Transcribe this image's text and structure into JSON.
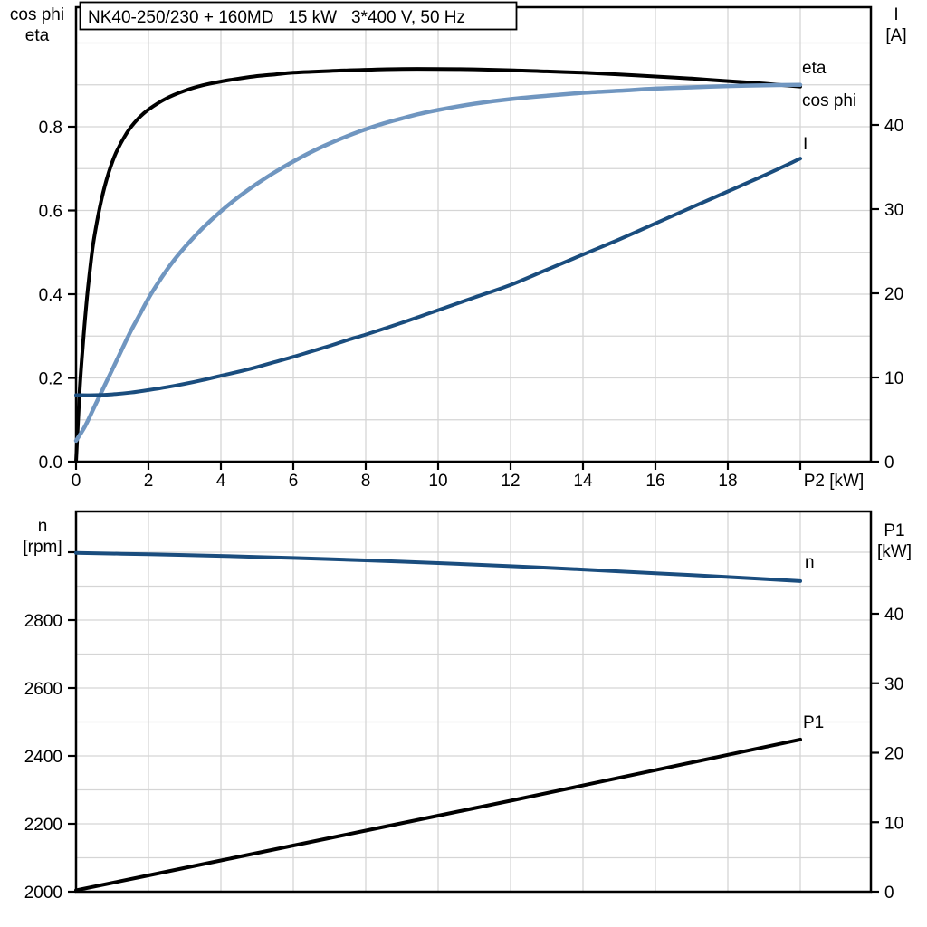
{
  "figure": {
    "title": "NK40-250/230 + 160MD   15 kW   3*400 V, 50 Hz"
  },
  "colors": {
    "eta_curve": "#000000",
    "cos_phi_curve": "#7096c0",
    "cos_phi_label": "#7fa5cd",
    "current_curve": "#1a4d7e",
    "blue_label": "#1f5fa6",
    "grid": "#d5d5d5",
    "axis": "#000000",
    "background": "#ffffff"
  },
  "chart_data": [
    {
      "id": "top",
      "type": "line",
      "title": "NK40-250/230 + 160MD   15 kW   3*400 V, 50 Hz",
      "x_axis": {
        "label": "P2 [kW]",
        "min": 0,
        "max": 21.95,
        "tick_values": [
          0,
          2,
          4,
          6,
          8,
          10,
          12,
          14,
          16,
          18,
          20
        ],
        "tick_labels": [
          "0",
          "2",
          "4",
          "6",
          "8",
          "10",
          "12",
          "14",
          "16",
          "18",
          ""
        ],
        "grid_values": [
          2,
          4,
          6,
          8,
          10,
          12,
          14,
          16,
          18,
          20
        ]
      },
      "y_left": {
        "title_lines": [
          "cos phi",
          "eta"
        ],
        "min": 0,
        "max": 1.085,
        "tick_values": [
          0,
          0.2,
          0.4,
          0.6,
          0.8
        ],
        "tick_labels": [
          "0.0",
          "0.2",
          "0.4",
          "0.6",
          "0.8"
        ],
        "grid_values": [
          0.1,
          0.2,
          0.3,
          0.4,
          0.5,
          0.6,
          0.7,
          0.8,
          0.9,
          1.0
        ]
      },
      "y_right": {
        "title_lines": [
          "I",
          "[A]"
        ],
        "min": 0,
        "max": 54,
        "tick_values": [
          0,
          10,
          20,
          30,
          40
        ],
        "tick_labels": [
          "0",
          "10",
          "20",
          "30",
          "40"
        ]
      },
      "series": [
        {
          "name": "eta",
          "axis": "left",
          "color": "#000000",
          "label_color": "#000000",
          "width": 4,
          "points": [
            [
              0,
              0
            ],
            [
              0.1,
              0.17
            ],
            [
              0.2,
              0.29
            ],
            [
              0.3,
              0.39
            ],
            [
              0.4,
              0.47
            ],
            [
              0.5,
              0.535
            ],
            [
              0.7,
              0.625
            ],
            [
              0.9,
              0.69
            ],
            [
              1.1,
              0.737
            ],
            [
              1.4,
              0.785
            ],
            [
              1.7,
              0.818
            ],
            [
              2,
              0.841
            ],
            [
              2.5,
              0.868
            ],
            [
              3,
              0.886
            ],
            [
              3.5,
              0.899
            ],
            [
              4,
              0.908
            ],
            [
              4.5,
              0.915
            ],
            [
              5,
              0.921
            ],
            [
              5.5,
              0.925
            ],
            [
              6,
              0.929
            ],
            [
              7,
              0.933
            ],
            [
              8,
              0.936
            ],
            [
              9,
              0.938
            ],
            [
              10,
              0.938
            ],
            [
              11,
              0.937
            ],
            [
              12,
              0.935
            ],
            [
              13,
              0.932
            ],
            [
              14,
              0.929
            ],
            [
              15,
              0.925
            ],
            [
              16,
              0.92
            ],
            [
              17,
              0.915
            ],
            [
              18,
              0.909
            ],
            [
              19,
              0.903
            ],
            [
              20,
              0.896
            ]
          ]
        },
        {
          "name": "cos phi",
          "axis": "left",
          "color": "#7096c0",
          "label_color": "#7fa5cd",
          "width": 4.5,
          "points": [
            [
              0,
              0.05
            ],
            [
              0.25,
              0.085
            ],
            [
              0.5,
              0.13
            ],
            [
              0.75,
              0.175
            ],
            [
              1,
              0.22
            ],
            [
              1.25,
              0.265
            ],
            [
              1.5,
              0.31
            ],
            [
              1.75,
              0.35
            ],
            [
              2,
              0.39
            ],
            [
              2.25,
              0.425
            ],
            [
              2.5,
              0.457
            ],
            [
              2.75,
              0.486
            ],
            [
              3,
              0.512
            ],
            [
              3.5,
              0.558
            ],
            [
              4,
              0.598
            ],
            [
              4.5,
              0.633
            ],
            [
              5,
              0.664
            ],
            [
              5.5,
              0.692
            ],
            [
              6,
              0.717
            ],
            [
              6.5,
              0.74
            ],
            [
              7,
              0.76
            ],
            [
              7.5,
              0.778
            ],
            [
              8,
              0.794
            ],
            [
              8.5,
              0.808
            ],
            [
              9,
              0.82
            ],
            [
              9.5,
              0.831
            ],
            [
              10,
              0.84
            ],
            [
              11,
              0.855
            ],
            [
              12,
              0.866
            ],
            [
              13,
              0.874
            ],
            [
              14,
              0.881
            ],
            [
              15,
              0.886
            ],
            [
              16,
              0.891
            ],
            [
              17,
              0.894
            ],
            [
              18,
              0.897
            ],
            [
              19,
              0.899
            ],
            [
              20,
              0.9
            ]
          ]
        },
        {
          "name": "I",
          "axis": "right",
          "color": "#1a4d7e",
          "label_color": "#1f5fa6",
          "width": 4,
          "points": [
            [
              0,
              7.9
            ],
            [
              0.5,
              7.9
            ],
            [
              1,
              8.0
            ],
            [
              1.5,
              8.2
            ],
            [
              2,
              8.5
            ],
            [
              2.5,
              8.85
            ],
            [
              3,
              9.25
            ],
            [
              3.5,
              9.7
            ],
            [
              4,
              10.2
            ],
            [
              4.5,
              10.7
            ],
            [
              5,
              11.25
            ],
            [
              5.5,
              11.85
            ],
            [
              6,
              12.45
            ],
            [
              6.5,
              13.1
            ],
            [
              7,
              13.75
            ],
            [
              7.5,
              14.45
            ],
            [
              8,
              15.1
            ],
            [
              8.5,
              15.8
            ],
            [
              9,
              16.5
            ],
            [
              9.5,
              17.25
            ],
            [
              10,
              18
            ],
            [
              11,
              19.5
            ],
            [
              12,
              21
            ],
            [
              13,
              22.8
            ],
            [
              14,
              24.6
            ],
            [
              15,
              26.4
            ],
            [
              16,
              28.3
            ],
            [
              17,
              30.2
            ],
            [
              18,
              32.1
            ],
            [
              19,
              34
            ],
            [
              20,
              36
            ]
          ]
        }
      ]
    },
    {
      "id": "bottom",
      "type": "line",
      "title": "",
      "x_axis": {
        "label": "",
        "min": 0,
        "max": 21.95,
        "tick_values": [],
        "tick_labels": [],
        "grid_values": [
          2,
          4,
          6,
          8,
          10,
          12,
          14,
          16,
          18,
          20
        ]
      },
      "y_left": {
        "title_lines": [
          "n",
          "[rpm]"
        ],
        "min": 2000,
        "max": 3120,
        "tick_values": [
          2000,
          2200,
          2400,
          2600,
          2800,
          3000
        ],
        "tick_labels": [
          "2000",
          "2200",
          "2400",
          "2600",
          "2800",
          ""
        ],
        "grid_values": [
          2100,
          2200,
          2300,
          2400,
          2500,
          2600,
          2700,
          2800,
          2900,
          3000
        ]
      },
      "y_right": {
        "title_lines": [
          "P1",
          "[kW]"
        ],
        "min": 0,
        "max": 54.7,
        "tick_values": [
          0,
          10,
          20,
          30,
          40
        ],
        "tick_labels": [
          "0",
          "10",
          "20",
          "30",
          "40"
        ]
      },
      "series": [
        {
          "name": "n",
          "axis": "left",
          "color": "#1a4d7e",
          "label_color": "#1f5fa6",
          "width": 4,
          "points": [
            [
              0,
              2998
            ],
            [
              2,
              2994
            ],
            [
              4,
              2989
            ],
            [
              6,
              2983
            ],
            [
              8,
              2976
            ],
            [
              10,
              2968
            ],
            [
              12,
              2959
            ],
            [
              14,
              2949
            ],
            [
              16,
              2938
            ],
            [
              18,
              2927
            ],
            [
              20,
              2915
            ]
          ]
        },
        {
          "name": "P1",
          "axis": "right",
          "color": "#000000",
          "label_color": "#000000",
          "width": 4,
          "points": [
            [
              0,
              0.2
            ],
            [
              2,
              2.35
            ],
            [
              4,
              4.5
            ],
            [
              6,
              6.65
            ],
            [
              8,
              8.8
            ],
            [
              10,
              10.95
            ],
            [
              12,
              13.1
            ],
            [
              14,
              15.3
            ],
            [
              16,
              17.5
            ],
            [
              18,
              19.7
            ],
            [
              20,
              21.9
            ]
          ]
        }
      ]
    }
  ]
}
